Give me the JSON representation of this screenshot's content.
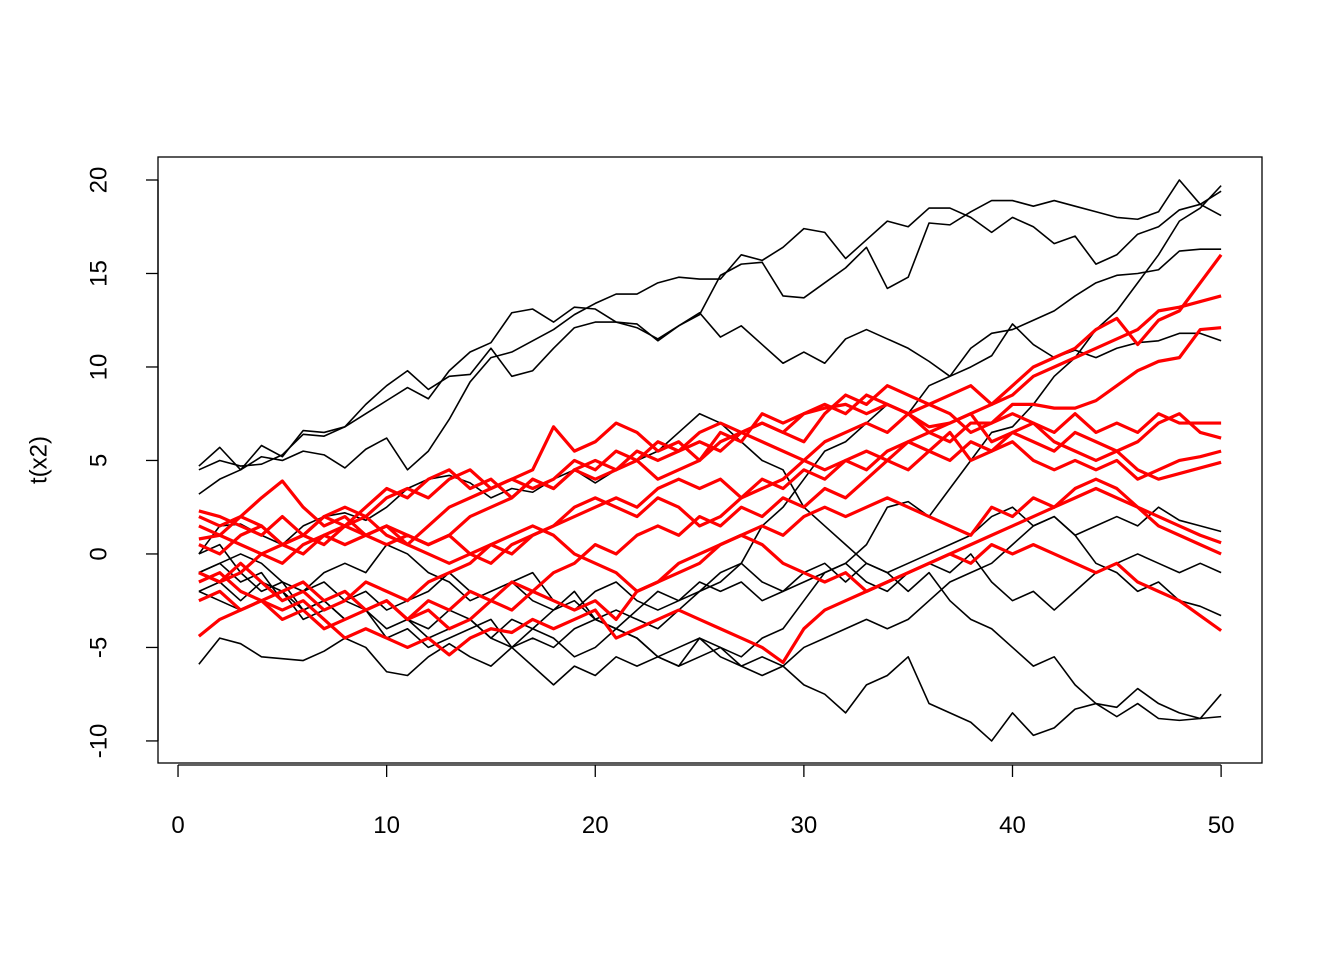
{
  "chart_data": {
    "type": "line",
    "y_label": "t(x2)",
    "x": [
      1,
      2,
      3,
      4,
      5,
      6,
      7,
      8,
      9,
      10,
      11,
      12,
      13,
      14,
      15,
      16,
      17,
      18,
      19,
      20,
      21,
      22,
      23,
      24,
      25,
      26,
      27,
      28,
      29,
      30,
      31,
      32,
      33,
      34,
      35,
      36,
      37,
      38,
      39,
      40,
      41,
      42,
      43,
      44,
      45,
      46,
      47,
      48,
      49,
      50
    ],
    "xlim": [
      -0.96,
      51.96
    ],
    "xticks": [
      0,
      10,
      20,
      30,
      40,
      50
    ],
    "ylim": [
      -11.18,
      21.23
    ],
    "yticks": [
      -10,
      -5,
      0,
      5,
      10,
      15,
      20
    ],
    "series": [
      {
        "color": "#000000",
        "values": [
          4.7,
          5.7,
          4.5,
          5.8,
          5.2,
          6.6,
          6.5,
          6.8,
          7.5,
          8.2,
          8.9,
          8.3,
          9.8,
          10.8,
          11.3,
          12.9,
          13.1,
          12.4,
          13.2,
          13.1,
          12.4,
          12.3,
          11.4,
          12.2,
          12.8,
          14.9,
          15.5,
          15.6,
          13.8,
          13.7,
          14.5,
          15.3,
          16.4,
          14.2,
          14.8,
          17.7,
          17.6,
          18.3,
          18.9,
          18.9,
          18.6,
          18.9,
          18.6,
          18.3,
          18.0,
          17.9,
          18.3,
          20.0,
          18.7,
          18.1
        ]
      },
      {
        "color": "#000000",
        "values": [
          3.2,
          4.0,
          4.5,
          5.2,
          5.0,
          5.5,
          5.3,
          4.6,
          5.6,
          6.2,
          4.5,
          5.5,
          7.2,
          9.2,
          10.5,
          10.8,
          11.4,
          12.0,
          12.8,
          13.4,
          13.9,
          13.9,
          14.5,
          14.8,
          14.7,
          14.7,
          16.0,
          15.7,
          16.4,
          17.4,
          17.2,
          15.8,
          16.8,
          17.8,
          17.5,
          18.5,
          18.5,
          18.0,
          17.2,
          18.0,
          17.5,
          16.6,
          17.0,
          15.5,
          16.0,
          17.1,
          17.5,
          18.4,
          18.7,
          19.4
        ]
      },
      {
        "color": "#000000",
        "values": [
          4.5,
          5.0,
          4.7,
          4.8,
          5.3,
          6.4,
          6.3,
          6.8,
          8.0,
          9.0,
          9.8,
          8.8,
          9.5,
          9.6,
          11.0,
          9.5,
          9.8,
          11.0,
          12.1,
          12.4,
          12.4,
          12.1,
          11.5,
          12.2,
          12.9,
          11.6,
          12.2,
          11.2,
          10.2,
          10.8,
          10.2,
          11.5,
          12.0,
          11.5,
          11.0,
          10.3,
          9.5,
          10.0,
          10.6,
          12.3,
          11.2,
          10.5,
          10.9,
          10.5,
          11.0,
          11.3,
          11.4,
          11.8,
          11.8,
          11.4
        ]
      },
      {
        "color": "#000000",
        "values": [
          0.0,
          0.5,
          -1.0,
          -2.0,
          -1.5,
          -3.0,
          -2.5,
          -3.5,
          -3.0,
          -4.0,
          -3.5,
          -4.5,
          -4.0,
          -3.5,
          -4.5,
          -5.0,
          -4.0,
          -4.5,
          -5.5,
          -5.0,
          -4.0,
          -4.5,
          -5.5,
          -5.0,
          -4.5,
          -5.0,
          -5.5,
          -4.5,
          -4.0,
          -2.5,
          -1.0,
          -0.5,
          0.5,
          2.5,
          2.8,
          2.0,
          3.5,
          5.0,
          6.5,
          6.8,
          8.0,
          9.5,
          10.5,
          12.0,
          13.0,
          14.5,
          16.0,
          17.8,
          18.5,
          19.7
        ]
      },
      {
        "color": "#000000",
        "values": [
          -1.0,
          -0.5,
          -1.5,
          -1.0,
          -2.5,
          -2.0,
          -1.5,
          -2.5,
          -2.0,
          -3.0,
          -2.5,
          -2.0,
          -1.0,
          -2.0,
          -2.5,
          -1.5,
          -2.5,
          -3.0,
          -2.0,
          -3.5,
          -3.0,
          -3.5,
          -4.0,
          -3.0,
          -2.0,
          -1.5,
          -0.5,
          1.5,
          2.5,
          4.0,
          5.5,
          6.0,
          7.0,
          8.0,
          7.5,
          9.0,
          9.5,
          11.0,
          11.8,
          12.0,
          12.5,
          13.0,
          13.8,
          14.5,
          14.9,
          15.0,
          15.2,
          16.2,
          16.3,
          16.3
        ]
      },
      {
        "color": "#000000",
        "values": [
          -2.0,
          -1.5,
          -2.5,
          -1.5,
          -2.0,
          -3.0,
          -2.5,
          -3.5,
          -3.0,
          -2.5,
          -3.5,
          -4.0,
          -3.0,
          -3.5,
          -4.5,
          -3.5,
          -4.0,
          -3.0,
          -2.5,
          -3.5,
          -4.0,
          -3.0,
          -2.0,
          -2.5,
          -1.5,
          -2.0,
          -1.5,
          -2.5,
          -2.0,
          -1.0,
          -0.5,
          -1.5,
          -0.5,
          -1.0,
          -2.0,
          -1.0,
          -2.5,
          -3.5,
          -4.0,
          -5.0,
          -6.0,
          -5.5,
          -7.0,
          -8.0,
          -8.2,
          -7.2,
          -8.0,
          -8.5,
          -8.8,
          -8.7
        ]
      },
      {
        "color": "#000000",
        "values": [
          -5.9,
          -4.5,
          -4.8,
          -5.5,
          -5.6,
          -5.7,
          -5.2,
          -4.5,
          -5.0,
          -6.3,
          -6.5,
          -5.5,
          -4.8,
          -5.5,
          -6.0,
          -5.0,
          -6.0,
          -7.0,
          -6.0,
          -6.5,
          -5.5,
          -6.0,
          -5.5,
          -6.0,
          -4.5,
          -5.5,
          -6.0,
          -6.5,
          -6.0,
          -7.0,
          -7.5,
          -8.5,
          -7.0,
          -6.5,
          -5.5,
          -8.0,
          -8.5,
          -9.0,
          -10.0,
          -8.5,
          -9.7,
          -9.3,
          -8.3,
          -8.0,
          -8.7,
          -8.0,
          -8.8,
          -8.9,
          -8.8,
          -7.5
        ]
      },
      {
        "color": "#000000",
        "values": [
          0.0,
          1.5,
          1.6,
          1.0,
          0.5,
          1.5,
          2.0,
          2.2,
          1.8,
          2.5,
          3.5,
          4.0,
          4.2,
          3.8,
          3.0,
          3.5,
          3.3,
          4.0,
          4.5,
          3.8,
          4.5,
          5.0,
          5.5,
          6.5,
          7.5,
          7.0,
          6.0,
          5.0,
          4.5,
          2.5,
          1.5,
          0.5,
          -0.5,
          -1.0,
          -0.5,
          0.0,
          0.5,
          1.0,
          2.0,
          2.5,
          1.5,
          2.0,
          1.0,
          1.5,
          2.0,
          1.5,
          2.5,
          1.8,
          1.5,
          1.2
        ]
      },
      {
        "color": "#000000",
        "values": [
          -2.0,
          -2.5,
          -3.0,
          -2.5,
          -2.0,
          -3.5,
          -3.0,
          -2.5,
          -3.0,
          -4.5,
          -4.0,
          -5.0,
          -4.5,
          -4.0,
          -3.5,
          -5.0,
          -4.5,
          -5.0,
          -4.0,
          -3.5,
          -4.0,
          -4.5,
          -5.5,
          -6.0,
          -5.5,
          -5.0,
          -6.0,
          -5.5,
          -6.0,
          -5.0,
          -4.5,
          -4.0,
          -3.5,
          -4.0,
          -3.5,
          -2.5,
          -1.5,
          -1.0,
          -0.5,
          0.5,
          1.5,
          2.0,
          1.0,
          -0.5,
          -1.0,
          -2.0,
          -1.5,
          -2.5,
          -2.8,
          -3.3
        ]
      },
      {
        "color": "#000000",
        "values": [
          -1.0,
          -0.5,
          0.0,
          -0.5,
          -1.5,
          -2.0,
          -1.0,
          -0.5,
          -1.0,
          0.5,
          0.0,
          -1.0,
          -1.5,
          -2.5,
          -2.0,
          -1.5,
          -1.0,
          -2.5,
          -3.0,
          -2.0,
          -1.5,
          -2.5,
          -3.0,
          -2.5,
          -2.0,
          -1.0,
          -0.5,
          -1.5,
          -2.0,
          -1.5,
          -1.0,
          -0.5,
          -1.5,
          -2.0,
          -1.0,
          -0.5,
          -1.0,
          0.0,
          -1.5,
          -2.5,
          -2.0,
          -3.0,
          -2.0,
          -1.0,
          -0.5,
          0.0,
          -0.5,
          -1.0,
          -0.5,
          -1.0
        ]
      },
      {
        "color": "#ff0000",
        "values": [
          2.0,
          1.5,
          2.0,
          3.0,
          3.9,
          2.5,
          1.5,
          2.0,
          1.0,
          0.5,
          1.0,
          0.5,
          1.0,
          0.0,
          -0.5,
          0.5,
          1.0,
          1.5,
          2.0,
          2.5,
          3.0,
          2.5,
          3.5,
          4.0,
          3.5,
          4.0,
          3.0,
          3.5,
          4.0,
          5.0,
          6.0,
          6.5,
          7.0,
          6.5,
          7.5,
          6.8,
          7.0,
          7.5,
          8.0,
          9.0,
          10.0,
          10.5,
          11.0,
          12.0,
          12.6,
          11.2,
          12.5,
          13.0,
          14.5,
          16.0
        ]
      },
      {
        "color": "#ff0000",
        "values": [
          1.5,
          1.0,
          2.0,
          1.5,
          0.5,
          1.0,
          2.0,
          1.5,
          2.5,
          3.5,
          3.0,
          4.0,
          4.5,
          3.5,
          4.0,
          3.0,
          4.0,
          3.5,
          4.5,
          5.0,
          4.5,
          5.5,
          5.0,
          5.5,
          6.0,
          5.5,
          6.5,
          7.0,
          6.5,
          7.5,
          8.0,
          7.5,
          8.5,
          8.0,
          7.5,
          8.0,
          8.5,
          9.0,
          8.0,
          8.5,
          9.5,
          10.0,
          10.5,
          11.0,
          11.5,
          12.0,
          13.0,
          13.2,
          13.5,
          13.8
        ]
      },
      {
        "color": "#ff0000",
        "values": [
          -1.0,
          -1.5,
          -0.5,
          -1.5,
          -2.5,
          -2.0,
          -3.0,
          -2.5,
          -1.5,
          -2.0,
          -2.5,
          -1.5,
          -1.0,
          -0.5,
          0.5,
          0.0,
          1.0,
          1.5,
          2.5,
          3.0,
          2.5,
          2.0,
          3.0,
          2.5,
          1.5,
          2.0,
          3.0,
          4.0,
          3.5,
          4.5,
          4.0,
          5.0,
          4.5,
          5.5,
          6.0,
          6.5,
          6.0,
          7.0,
          7.0,
          8.0,
          8.0,
          7.8,
          7.8,
          8.2,
          9.0,
          9.8,
          10.3,
          10.5,
          12.0,
          12.1
        ]
      },
      {
        "color": "#ff0000",
        "values": [
          0.5,
          0.0,
          1.0,
          1.5,
          0.5,
          1.0,
          2.0,
          2.5,
          2.0,
          3.0,
          3.5,
          3.0,
          4.0,
          4.5,
          3.5,
          4.0,
          4.5,
          6.8,
          5.5,
          6.0,
          7.0,
          6.5,
          5.5,
          6.0,
          5.0,
          6.5,
          6.0,
          7.5,
          7.0,
          7.5,
          7.8,
          8.0,
          7.5,
          8.0,
          7.5,
          6.5,
          7.0,
          7.5,
          6.0,
          6.5,
          7.0,
          6.5,
          7.5,
          6.5,
          7.0,
          6.5,
          7.5,
          7.0,
          7.0,
          7.0
        ]
      },
      {
        "color": "#ff0000",
        "values": [
          2.3,
          2.0,
          1.5,
          1.0,
          2.0,
          1.0,
          0.5,
          1.5,
          1.0,
          1.5,
          1.0,
          0.5,
          1.0,
          2.0,
          2.5,
          3.0,
          4.0,
          3.5,
          4.5,
          4.0,
          4.5,
          5.0,
          4.0,
          4.5,
          5.0,
          6.0,
          6.5,
          7.0,
          6.5,
          6.0,
          7.5,
          8.5,
          8.0,
          9.0,
          8.5,
          8.0,
          7.5,
          6.5,
          7.0,
          7.5,
          7.0,
          6.0,
          5.5,
          5.0,
          5.5,
          6.0,
          7.0,
          7.5,
          6.5,
          6.2
        ]
      },
      {
        "color": "#ff0000",
        "values": [
          -1.5,
          -1.0,
          -2.0,
          -2.5,
          -2.0,
          -1.5,
          -2.5,
          -2.0,
          -3.0,
          -2.5,
          -3.5,
          -2.5,
          -3.0,
          -2.0,
          -2.5,
          -1.5,
          -2.0,
          -1.0,
          -0.5,
          0.5,
          0.0,
          1.0,
          1.5,
          1.0,
          2.0,
          1.5,
          2.5,
          2.0,
          3.0,
          2.5,
          3.5,
          3.0,
          4.0,
          5.0,
          4.5,
          5.5,
          5.0,
          6.0,
          5.5,
          6.5,
          6.0,
          5.5,
          6.5,
          6.0,
          5.5,
          4.5,
          4.0,
          4.3,
          4.6,
          4.9
        ]
      },
      {
        "color": "#ff0000",
        "values": [
          0.8,
          1.0,
          0.5,
          0.0,
          -0.5,
          0.5,
          1.0,
          0.5,
          1.0,
          1.5,
          0.5,
          0.0,
          -0.5,
          0.0,
          0.5,
          1.0,
          1.5,
          1.0,
          0.0,
          -0.5,
          -1.0,
          -2.0,
          -1.5,
          -1.0,
          -0.5,
          0.5,
          1.0,
          1.5,
          1.0,
          2.0,
          2.5,
          2.0,
          2.5,
          3.0,
          2.5,
          2.0,
          1.5,
          1.0,
          2.5,
          2.0,
          3.0,
          2.5,
          3.5,
          4.0,
          3.5,
          2.5,
          2.0,
          1.5,
          1.0,
          0.6
        ]
      },
      {
        "color": "#ff0000",
        "values": [
          -2.5,
          -2.0,
          -3.0,
          -2.5,
          -3.5,
          -3.0,
          -4.0,
          -3.5,
          -3.0,
          -2.5,
          -3.5,
          -3.0,
          -4.0,
          -3.5,
          -2.5,
          -3.0,
          -2.0,
          -2.5,
          -3.0,
          -2.5,
          -3.5,
          -2.0,
          -1.5,
          -0.5,
          0.0,
          0.5,
          1.0,
          0.5,
          -0.5,
          -1.0,
          -1.5,
          -1.0,
          -2.0,
          -1.5,
          -1.0,
          -0.5,
          0.0,
          0.5,
          1.0,
          1.5,
          2.0,
          2.5,
          3.0,
          3.5,
          3.0,
          2.5,
          1.5,
          1.0,
          0.5,
          0.0
        ]
      },
      {
        "color": "#ff0000",
        "values": [
          -4.4,
          -3.5,
          -3.0,
          -2.5,
          -3.0,
          -2.5,
          -3.5,
          -4.5,
          -4.0,
          -4.5,
          -5.0,
          -4.5,
          -5.4,
          -4.5,
          -4.0,
          -4.2,
          -3.5,
          -4.0,
          -3.5,
          -3.0,
          -4.5,
          -4.0,
          -3.5,
          -3.0,
          -3.5,
          -4.0,
          -4.5,
          -5.0,
          -5.8,
          -4.0,
          -3.0,
          -2.5,
          -2.0,
          -1.5,
          -1.0,
          -0.5,
          0.0,
          -0.5,
          0.5,
          0.0,
          0.5,
          0.0,
          -0.5,
          -1.0,
          -0.5,
          -1.5,
          -2.0,
          -2.5,
          -3.3,
          -4.1
        ]
      },
      {
        "color": "#ff0000",
        "values": [
          -1.0,
          -1.5,
          -1.0,
          0.0,
          0.5,
          0.0,
          1.0,
          1.5,
          2.0,
          1.0,
          0.5,
          1.5,
          2.5,
          3.0,
          3.5,
          4.0,
          3.5,
          4.0,
          5.0,
          4.5,
          5.5,
          5.0,
          6.0,
          5.5,
          6.5,
          7.0,
          6.5,
          6.0,
          5.5,
          5.0,
          4.5,
          5.0,
          5.5,
          5.0,
          6.0,
          5.5,
          6.5,
          5.0,
          5.5,
          6.0,
          5.0,
          4.5,
          5.0,
          4.5,
          5.0,
          4.0,
          4.5,
          5.0,
          5.2,
          5.5
        ]
      }
    ]
  }
}
